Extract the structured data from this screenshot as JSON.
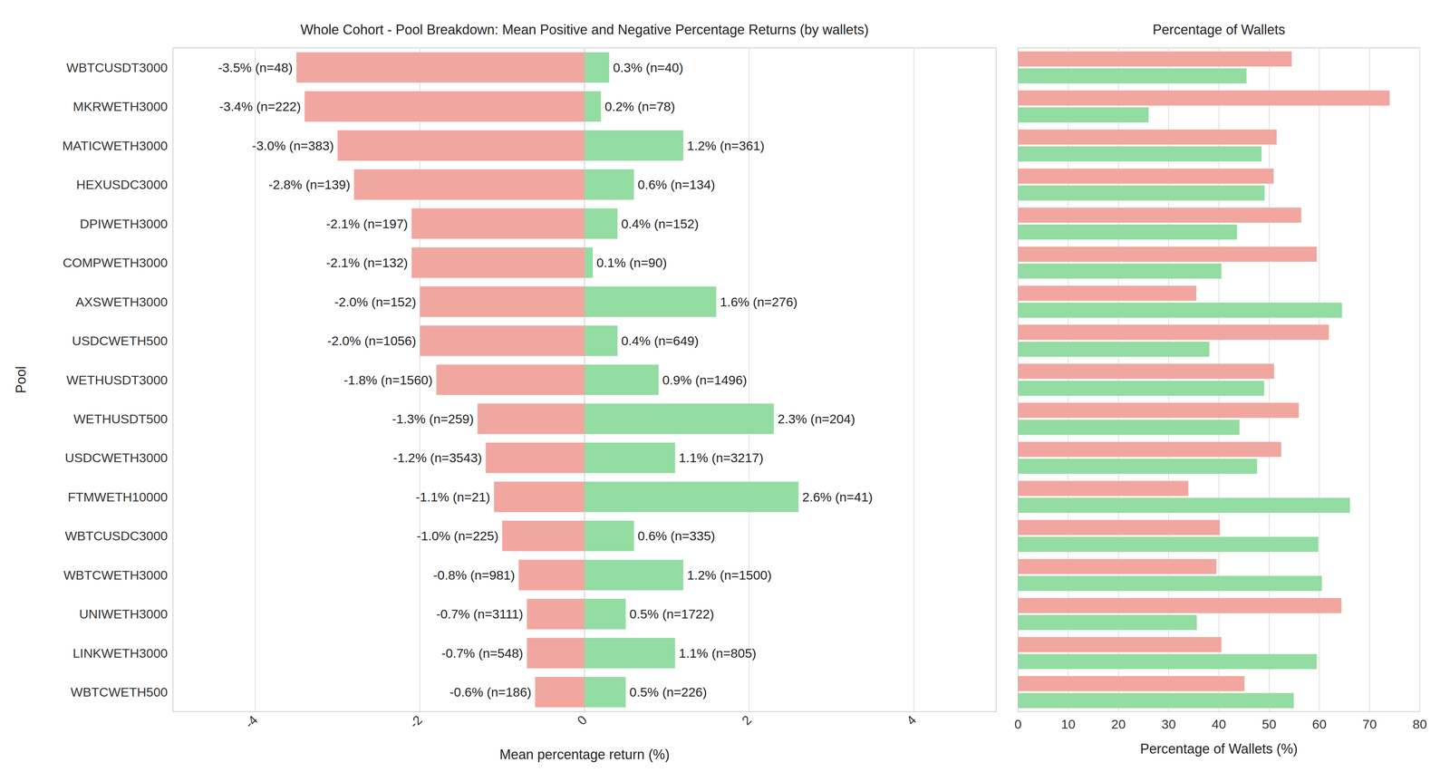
{
  "chart_data": [
    {
      "type": "bar",
      "orientation": "horizontal",
      "title": "Whole Cohort - Pool Breakdown: Mean Positive and Negative Percentage Returns (by wallets)",
      "x_label": "Mean percentage return (%)",
      "y_label": "Pool",
      "categories": [
        "WBTCUSDT3000",
        "MKRWETH3000",
        "MATICWETH3000",
        "HEXUSDC3000",
        "DPIWETH3000",
        "COMPWETH3000",
        "AXSWETH3000",
        "USDCWETH500",
        "WETHUSDT3000",
        "WETHUSDT500",
        "USDCWETH3000",
        "FTMWETH10000",
        "WBTCUSDC3000",
        "WBTCWETH3000",
        "UNIWETH3000",
        "LINKWETH3000",
        "WBTCWETH500"
      ],
      "series": [
        {
          "color": "#f2a6a0",
          "values": [
            -3.5,
            -3.4,
            -3.0,
            -2.8,
            -2.1,
            -2.1,
            -2.0,
            -2.0,
            -1.8,
            -1.3,
            -1.2,
            -1.1,
            -1.0,
            -0.8,
            -0.7,
            -0.7,
            -0.6
          ],
          "value_labels": [
            "-3.5% (n=48)",
            "-3.4% (n=222)",
            "-3.0% (n=383)",
            "-2.8% (n=139)",
            "-2.1% (n=197)",
            "-2.1% (n=132)",
            "-2.0% (n=152)",
            "-2.0% (n=1056)",
            "-1.8% (n=1560)",
            "-1.3% (n=259)",
            "-1.2% (n=3543)",
            "-1.1% (n=21)",
            "-1.0% (n=225)",
            "-0.8% (n=981)",
            "-0.7% (n=3111)",
            "-0.7% (n=548)",
            "-0.6% (n=186)"
          ]
        },
        {
          "color": "#93dca2",
          "values": [
            0.3,
            0.2,
            1.2,
            0.6,
            0.4,
            0.1,
            1.6,
            0.4,
            0.9,
            2.3,
            1.1,
            2.6,
            0.6,
            1.2,
            0.5,
            1.1,
            0.5
          ],
          "value_labels": [
            "0.3% (n=40)",
            "0.2% (n=78)",
            "1.2% (n=361)",
            "0.6% (n=134)",
            "0.4% (n=152)",
            "0.1% (n=90)",
            "1.6% (n=276)",
            "0.4% (n=649)",
            "0.9% (n=1496)",
            "2.3% (n=204)",
            "1.1% (n=3217)",
            "2.6% (n=41)",
            "0.6% (n=335)",
            "1.2% (n=1500)",
            "0.5% (n=1722)",
            "1.1% (n=805)",
            "0.5% (n=226)"
          ]
        }
      ],
      "xlim": [
        -5,
        5
      ],
      "xticks": [
        -4,
        -2,
        0,
        2,
        4
      ],
      "grid": true,
      "data_labels": true
    },
    {
      "type": "bar",
      "orientation": "horizontal",
      "title": "Percentage of Wallets",
      "x_label": "Percentage of Wallets (%)",
      "categories": [
        "WBTCUSDT3000",
        "MKRWETH3000",
        "MATICWETH3000",
        "HEXUSDC3000",
        "DPIWETH3000",
        "COMPWETH3000",
        "AXSWETH3000",
        "USDCWETH500",
        "WETHUSDT3000",
        "WETHUSDT500",
        "USDCWETH3000",
        "FTMWETH10000",
        "WBTCUSDC3000",
        "WBTCWETH3000",
        "UNIWETH3000",
        "LINKWETH3000",
        "WBTCWETH500"
      ],
      "series": [
        {
          "color": "#f2a6a0",
          "values": [
            54.5,
            74.0,
            51.5,
            50.9,
            56.4,
            59.5,
            35.5,
            61.9,
            51.0,
            55.9,
            52.4,
            33.9,
            40.2,
            39.5,
            64.4,
            40.5,
            45.1
          ]
        },
        {
          "color": "#93dca2",
          "values": [
            45.5,
            26.0,
            48.5,
            49.1,
            43.6,
            40.5,
            64.5,
            38.1,
            49.0,
            44.1,
            47.6,
            66.1,
            59.8,
            60.5,
            35.6,
            59.5,
            54.9
          ]
        }
      ],
      "xlim": [
        0,
        80
      ],
      "xticks": [
        0,
        10,
        20,
        30,
        40,
        50,
        60,
        70,
        80
      ],
      "grid": true,
      "data_labels": false,
      "tick_labels": "x"
    }
  ]
}
